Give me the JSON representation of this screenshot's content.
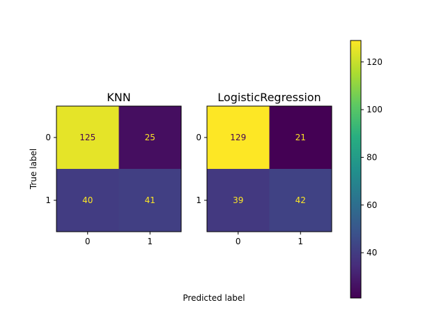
{
  "chart_data": {
    "type": "heatmap",
    "colormap": "viridis",
    "xlabel": "Predicted label",
    "ylabel": "True label",
    "colorbar": {
      "min": 21,
      "max": 129,
      "ticks": [
        40,
        60,
        80,
        100,
        120
      ]
    },
    "panels": [
      {
        "title": "KNN",
        "x_ticks": [
          "0",
          "1"
        ],
        "y_ticks": [
          "0",
          "1"
        ],
        "matrix": [
          [
            125,
            25
          ],
          [
            40,
            41
          ]
        ]
      },
      {
        "title": "LogisticRegression",
        "x_ticks": [
          "0",
          "1"
        ],
        "y_ticks": [
          "0",
          "1"
        ],
        "matrix": [
          [
            129,
            21
          ],
          [
            39,
            42
          ]
        ]
      }
    ]
  }
}
